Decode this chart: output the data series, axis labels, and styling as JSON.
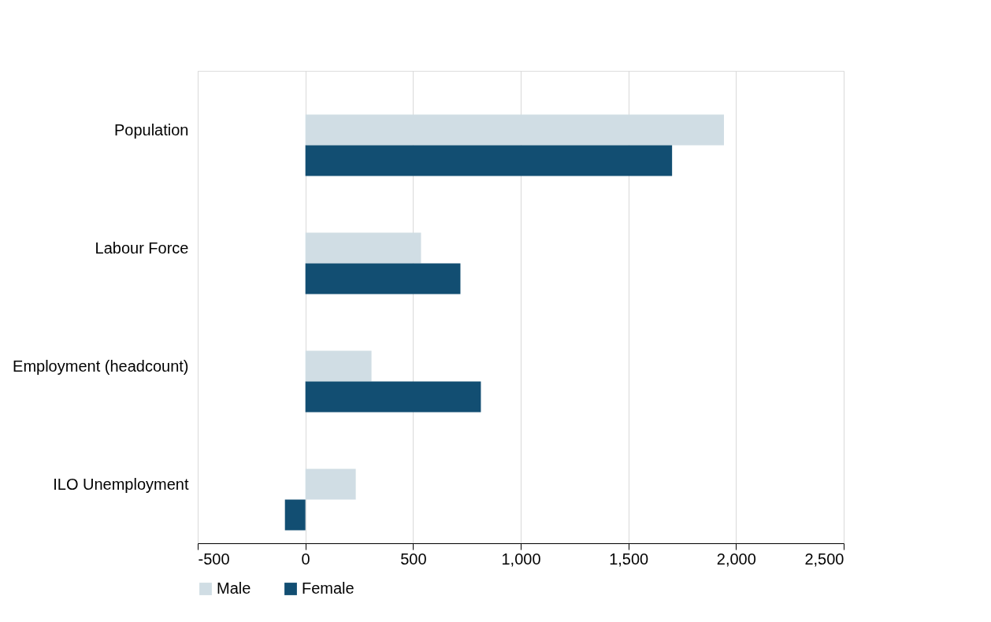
{
  "chart_data": {
    "type": "bar",
    "orientation": "horizontal",
    "categories": [
      "Population",
      "Labour Force",
      "Employment (headcount)",
      "ILO Unemployment"
    ],
    "series": [
      {
        "name": "Male",
        "color": "#d0dde4",
        "values": [
          1944,
          537,
          307,
          234
        ]
      },
      {
        "name": "Female",
        "color": "#124e72",
        "values": [
          1703,
          720,
          815,
          -95
        ]
      }
    ],
    "xlim": [
      -500,
      2500
    ],
    "xticks": [
      {
        "value": -500,
        "label": "-500"
      },
      0,
      500,
      {
        "value": 1000,
        "label": "1,000"
      },
      {
        "value": 1500,
        "label": "1,500"
      },
      {
        "value": 2000,
        "label": "2,000"
      },
      {
        "value": 2500,
        "label": "2,500"
      }
    ],
    "grid": "x",
    "legend": "bottom"
  }
}
